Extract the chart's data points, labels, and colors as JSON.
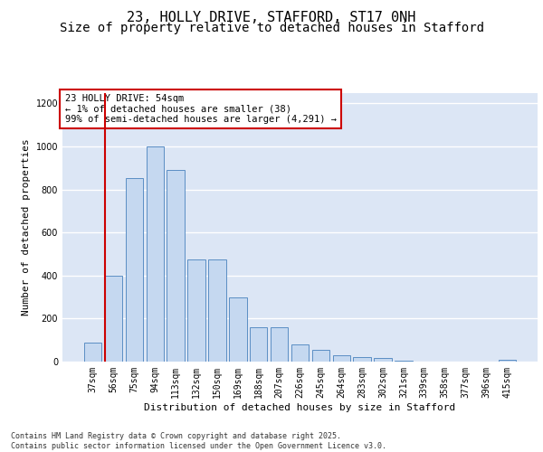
{
  "title_line1": "23, HOLLY DRIVE, STAFFORD, ST17 0NH",
  "title_line2": "Size of property relative to detached houses in Stafford",
  "xlabel": "Distribution of detached houses by size in Stafford",
  "ylabel": "Number of detached properties",
  "categories": [
    "37sqm",
    "56sqm",
    "75sqm",
    "94sqm",
    "113sqm",
    "132sqm",
    "150sqm",
    "169sqm",
    "188sqm",
    "207sqm",
    "226sqm",
    "245sqm",
    "264sqm",
    "283sqm",
    "302sqm",
    "321sqm",
    "339sqm",
    "358sqm",
    "377sqm",
    "396sqm",
    "415sqm"
  ],
  "values": [
    90,
    400,
    855,
    1000,
    890,
    475,
    475,
    300,
    160,
    160,
    80,
    55,
    30,
    20,
    15,
    5,
    2,
    2,
    2,
    2,
    8
  ],
  "bar_color": "#c5d8f0",
  "bar_edge_color": "#5b8ec4",
  "annotation_text": "23 HOLLY DRIVE: 54sqm\n← 1% of detached houses are smaller (38)\n99% of semi-detached houses are larger (4,291) →",
  "annotation_box_color": "#ffffff",
  "annotation_box_edge_color": "#cc0000",
  "vline_x_index": 1,
  "vline_color": "#cc0000",
  "ylim": [
    0,
    1250
  ],
  "yticks": [
    0,
    200,
    400,
    600,
    800,
    1000,
    1200
  ],
  "background_color": "#dce6f5",
  "grid_color": "#ffffff",
  "footer_text": "Contains HM Land Registry data © Crown copyright and database right 2025.\nContains public sector information licensed under the Open Government Licence v3.0.",
  "title_fontsize": 11,
  "subtitle_fontsize": 10,
  "label_fontsize": 8,
  "tick_fontsize": 7,
  "annotation_fontsize": 7.5
}
